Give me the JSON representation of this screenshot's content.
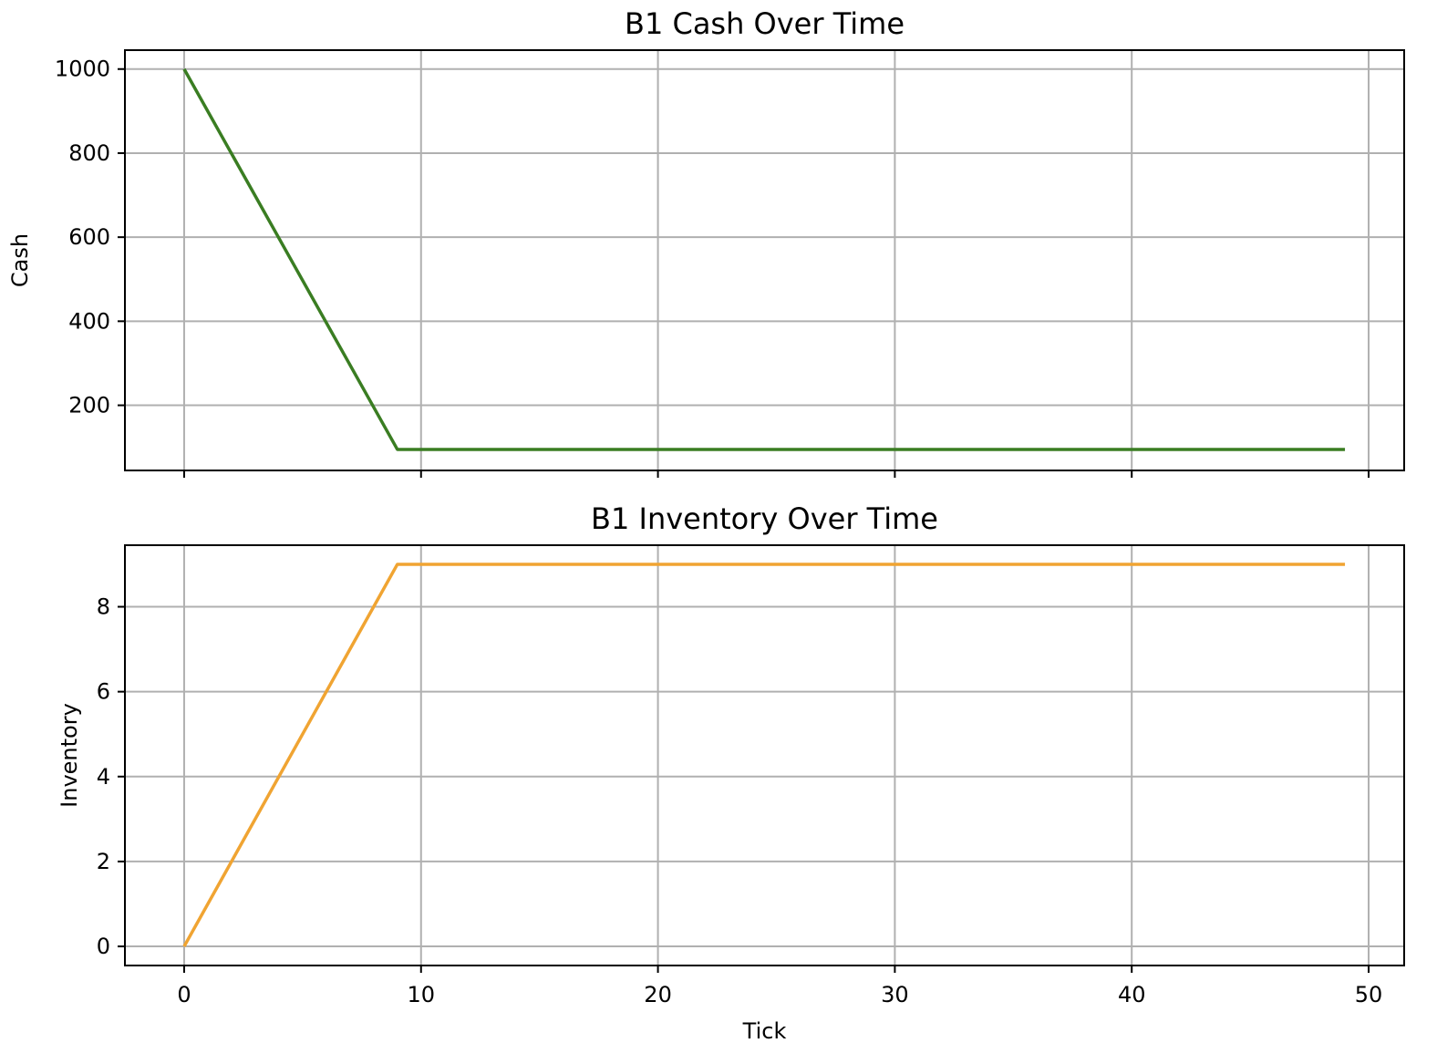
{
  "chart_data": [
    {
      "type": "line",
      "title": "B1 Cash Over Time",
      "xlabel": "",
      "ylabel": "Cash",
      "xlim": [
        -2.5,
        51.5
      ],
      "ylim": [
        45,
        1045
      ],
      "xticks": [
        0,
        10,
        20,
        30,
        40,
        50
      ],
      "xtick_labels": [],
      "yticks": [
        200,
        400,
        600,
        800,
        1000
      ],
      "ytick_labels": [
        "200",
        "400",
        "600",
        "800",
        "1000"
      ],
      "grid": true,
      "series": [
        {
          "color": "#3a7d22",
          "x": [
            0,
            9,
            49
          ],
          "y": [
            1000,
            95,
            95
          ]
        }
      ]
    },
    {
      "type": "line",
      "title": "B1 Inventory Over Time",
      "xlabel": "Tick",
      "ylabel": "Inventory",
      "xlim": [
        -2.5,
        51.5
      ],
      "ylim": [
        -0.45,
        9.45
      ],
      "xticks": [
        0,
        10,
        20,
        30,
        40,
        50
      ],
      "xtick_labels": [
        "0",
        "10",
        "20",
        "30",
        "40",
        "50"
      ],
      "yticks": [
        0,
        2,
        4,
        6,
        8
      ],
      "ytick_labels": [
        "0",
        "2",
        "4",
        "6",
        "8"
      ],
      "grid": true,
      "series": [
        {
          "color": "#f0a432",
          "x": [
            0,
            9,
            49
          ],
          "y": [
            0,
            9,
            9
          ]
        }
      ]
    }
  ]
}
